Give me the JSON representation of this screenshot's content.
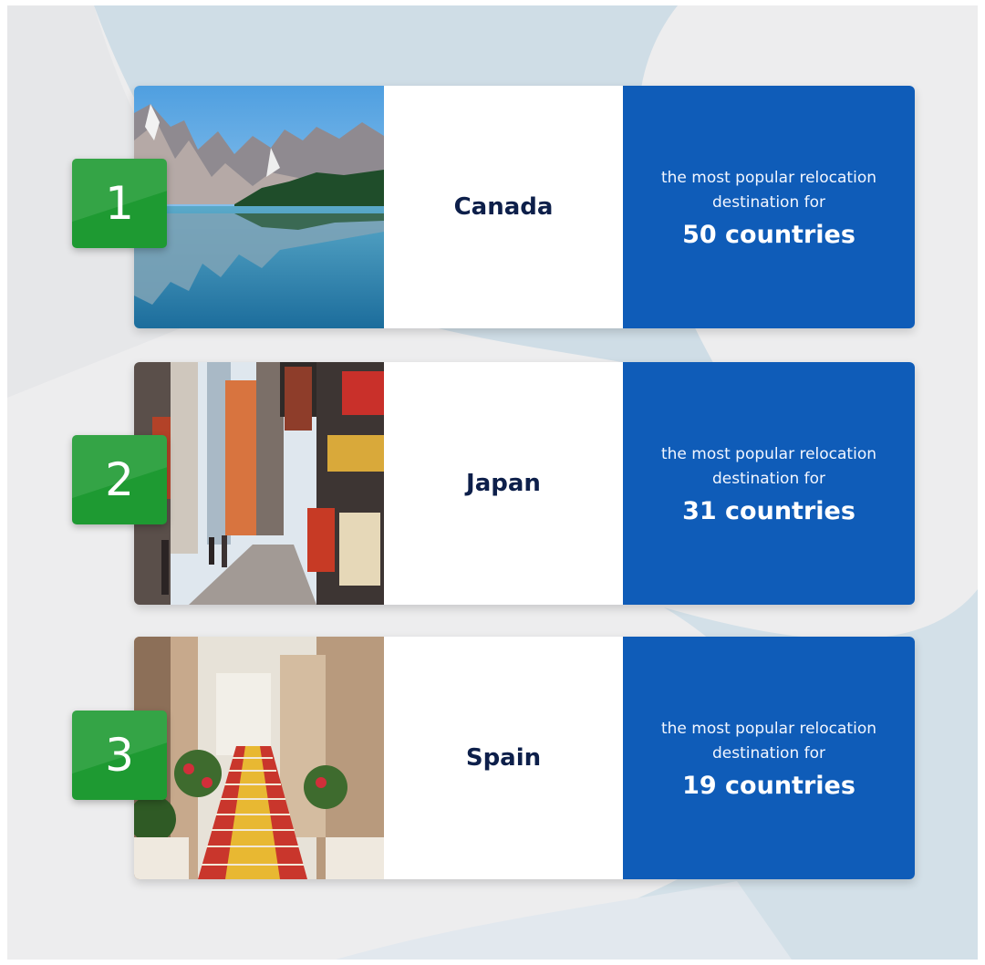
{
  "colors": {
    "background": "#ededee",
    "accent_blue": "#0f5cb8",
    "badge_green": "#1e9a32",
    "name_text": "#0d1f4a"
  },
  "destinations": [
    {
      "rank": "1",
      "country": "Canada",
      "photo": "mountain-lake-photo",
      "stat_line1": "the most popular relocation",
      "stat_line2": "destination for",
      "stat_count": "50 countries"
    },
    {
      "rank": "2",
      "country": "Japan",
      "photo": "city-street-photo",
      "stat_line1": "the most popular relocation",
      "stat_line2": "destination for",
      "stat_count": "31 countries"
    },
    {
      "rank": "3",
      "country": "Spain",
      "photo": "painted-stairs-photo",
      "stat_line1": "the most popular relocation",
      "stat_line2": "destination for",
      "stat_count": "19 countries"
    }
  ]
}
